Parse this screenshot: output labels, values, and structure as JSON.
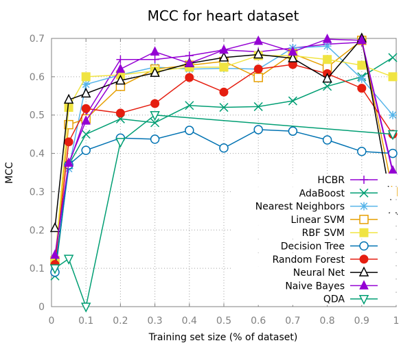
{
  "chart_data": {
    "type": "line",
    "title": "MCC for heart dataset",
    "xlabel": "Training set size (% of dataset)",
    "ylabel": "MCC",
    "xlim": [
      0,
      1
    ],
    "ylim": [
      0,
      0.7
    ],
    "x_ticks": [
      "0",
      "0.1",
      "0.2",
      "0.3",
      "0.4",
      "0.5",
      "0.6",
      "0.7",
      "0.8",
      "0.9",
      "1"
    ],
    "y_ticks": [
      "0",
      "0.1",
      "0.2",
      "0.3",
      "0.4",
      "0.5",
      "0.6",
      "0.7"
    ],
    "grid": true,
    "legend_position": "right",
    "x": [
      0.01,
      0.05,
      0.1,
      0.2,
      0.3,
      0.4,
      0.5,
      0.6,
      0.7,
      0.8,
      0.9,
      0.99
    ],
    "series": [
      {
        "name": "HCBR",
        "color": "#9400d3",
        "marker": "plus",
        "values": [
          0.13,
          0.37,
          0.5,
          0.645,
          0.645,
          0.655,
          0.67,
          0.665,
          0.675,
          0.685,
          0.69,
          0.35
        ]
      },
      {
        "name": "AdaBoost",
        "color": "#009e73",
        "marker": "cross",
        "values": [
          0.08,
          0.37,
          0.45,
          0.49,
          0.48,
          0.525,
          0.52,
          0.522,
          0.537,
          0.575,
          0.6,
          0.65
        ]
      },
      {
        "name": "Nearest Neighbors",
        "color": "#56b4e9",
        "marker": "star",
        "values": [
          0.1,
          0.36,
          0.58,
          0.605,
          0.625,
          0.62,
          0.622,
          0.62,
          0.675,
          0.68,
          0.595,
          0.5
        ]
      },
      {
        "name": "Linear SVM",
        "color": "#e69f00",
        "marker": "square-open",
        "values": [
          0.12,
          0.475,
          0.49,
          0.575,
          0.62,
          0.63,
          0.64,
          0.598,
          0.66,
          0.625,
          0.695,
          0.3
        ]
      },
      {
        "name": "RBF SVM",
        "color": "#f0e442",
        "marker": "square-filled",
        "values": [
          0.12,
          0.52,
          0.6,
          0.605,
          0.615,
          0.625,
          0.625,
          0.655,
          0.655,
          0.645,
          0.63,
          0.6
        ]
      },
      {
        "name": "Decision Tree",
        "color": "#0072b2",
        "marker": "circle-open",
        "values": [
          0.09,
          0.37,
          0.408,
          0.44,
          0.437,
          0.46,
          0.414,
          0.462,
          0.458,
          0.435,
          0.405,
          0.4
        ]
      },
      {
        "name": "Random Forest",
        "color": "#e51e10",
        "marker": "circle-filled",
        "values": [
          0.11,
          0.43,
          0.517,
          0.505,
          0.53,
          0.598,
          0.56,
          0.62,
          0.632,
          0.608,
          0.57,
          0.45
        ]
      },
      {
        "name": "Neural Net",
        "color": "#000000",
        "marker": "triangle-open",
        "values": [
          0.205,
          0.54,
          0.556,
          0.59,
          0.61,
          0.635,
          0.65,
          0.658,
          0.648,
          0.595,
          0.7,
          0.25
        ]
      },
      {
        "name": "Naive Bayes",
        "color": "#9400d3",
        "marker": "triangle-filled",
        "values": [
          0.135,
          0.375,
          0.485,
          0.62,
          0.665,
          0.635,
          0.67,
          0.693,
          0.665,
          0.698,
          0.695,
          0.355
        ]
      },
      {
        "name": "QDA",
        "color": "#009e73",
        "marker": "triangle-down-open",
        "values": [
          0.1,
          0.125,
          0.0,
          0.43,
          0.5,
          null,
          null,
          null,
          null,
          null,
          null,
          0.45
        ]
      }
    ]
  }
}
